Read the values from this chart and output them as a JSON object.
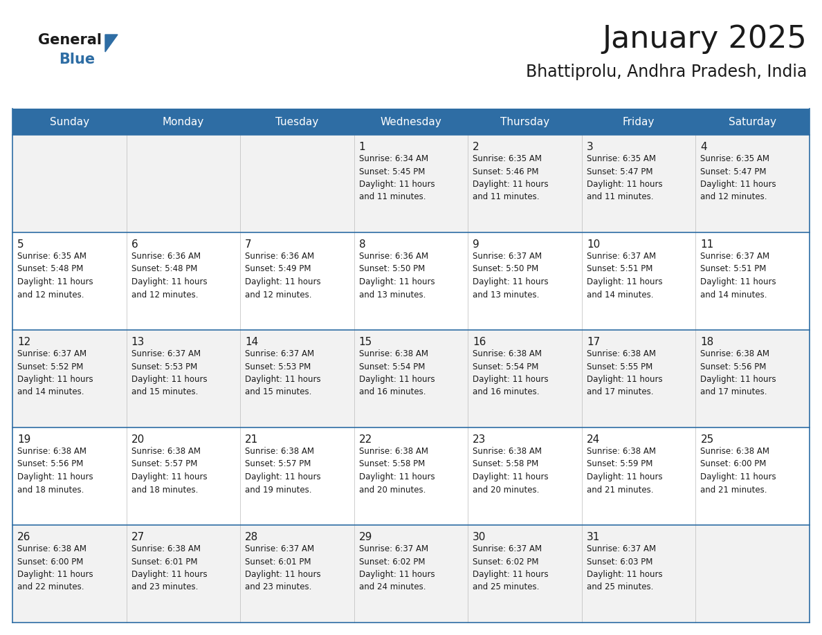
{
  "title": "January 2025",
  "subtitle": "Bhattiprolu, Andhra Pradesh, India",
  "header_bg": "#2E6DA4",
  "header_text": "#FFFFFF",
  "cell_bg_odd": "#F2F2F2",
  "cell_bg_even": "#FFFFFF",
  "text_color": "#1a1a1a",
  "border_color": "#2E6DA4",
  "light_border": "#BBBBBB",
  "day_headers": [
    "Sunday",
    "Monday",
    "Tuesday",
    "Wednesday",
    "Thursday",
    "Friday",
    "Saturday"
  ],
  "weeks": [
    [
      {
        "day": "",
        "info": ""
      },
      {
        "day": "",
        "info": ""
      },
      {
        "day": "",
        "info": ""
      },
      {
        "day": "1",
        "info": "Sunrise: 6:34 AM\nSunset: 5:45 PM\nDaylight: 11 hours\nand 11 minutes."
      },
      {
        "day": "2",
        "info": "Sunrise: 6:35 AM\nSunset: 5:46 PM\nDaylight: 11 hours\nand 11 minutes."
      },
      {
        "day": "3",
        "info": "Sunrise: 6:35 AM\nSunset: 5:47 PM\nDaylight: 11 hours\nand 11 minutes."
      },
      {
        "day": "4",
        "info": "Sunrise: 6:35 AM\nSunset: 5:47 PM\nDaylight: 11 hours\nand 12 minutes."
      }
    ],
    [
      {
        "day": "5",
        "info": "Sunrise: 6:35 AM\nSunset: 5:48 PM\nDaylight: 11 hours\nand 12 minutes."
      },
      {
        "day": "6",
        "info": "Sunrise: 6:36 AM\nSunset: 5:48 PM\nDaylight: 11 hours\nand 12 minutes."
      },
      {
        "day": "7",
        "info": "Sunrise: 6:36 AM\nSunset: 5:49 PM\nDaylight: 11 hours\nand 12 minutes."
      },
      {
        "day": "8",
        "info": "Sunrise: 6:36 AM\nSunset: 5:50 PM\nDaylight: 11 hours\nand 13 minutes."
      },
      {
        "day": "9",
        "info": "Sunrise: 6:37 AM\nSunset: 5:50 PM\nDaylight: 11 hours\nand 13 minutes."
      },
      {
        "day": "10",
        "info": "Sunrise: 6:37 AM\nSunset: 5:51 PM\nDaylight: 11 hours\nand 14 minutes."
      },
      {
        "day": "11",
        "info": "Sunrise: 6:37 AM\nSunset: 5:51 PM\nDaylight: 11 hours\nand 14 minutes."
      }
    ],
    [
      {
        "day": "12",
        "info": "Sunrise: 6:37 AM\nSunset: 5:52 PM\nDaylight: 11 hours\nand 14 minutes."
      },
      {
        "day": "13",
        "info": "Sunrise: 6:37 AM\nSunset: 5:53 PM\nDaylight: 11 hours\nand 15 minutes."
      },
      {
        "day": "14",
        "info": "Sunrise: 6:37 AM\nSunset: 5:53 PM\nDaylight: 11 hours\nand 15 minutes."
      },
      {
        "day": "15",
        "info": "Sunrise: 6:38 AM\nSunset: 5:54 PM\nDaylight: 11 hours\nand 16 minutes."
      },
      {
        "day": "16",
        "info": "Sunrise: 6:38 AM\nSunset: 5:54 PM\nDaylight: 11 hours\nand 16 minutes."
      },
      {
        "day": "17",
        "info": "Sunrise: 6:38 AM\nSunset: 5:55 PM\nDaylight: 11 hours\nand 17 minutes."
      },
      {
        "day": "18",
        "info": "Sunrise: 6:38 AM\nSunset: 5:56 PM\nDaylight: 11 hours\nand 17 minutes."
      }
    ],
    [
      {
        "day": "19",
        "info": "Sunrise: 6:38 AM\nSunset: 5:56 PM\nDaylight: 11 hours\nand 18 minutes."
      },
      {
        "day": "20",
        "info": "Sunrise: 6:38 AM\nSunset: 5:57 PM\nDaylight: 11 hours\nand 18 minutes."
      },
      {
        "day": "21",
        "info": "Sunrise: 6:38 AM\nSunset: 5:57 PM\nDaylight: 11 hours\nand 19 minutes."
      },
      {
        "day": "22",
        "info": "Sunrise: 6:38 AM\nSunset: 5:58 PM\nDaylight: 11 hours\nand 20 minutes."
      },
      {
        "day": "23",
        "info": "Sunrise: 6:38 AM\nSunset: 5:58 PM\nDaylight: 11 hours\nand 20 minutes."
      },
      {
        "day": "24",
        "info": "Sunrise: 6:38 AM\nSunset: 5:59 PM\nDaylight: 11 hours\nand 21 minutes."
      },
      {
        "day": "25",
        "info": "Sunrise: 6:38 AM\nSunset: 6:00 PM\nDaylight: 11 hours\nand 21 minutes."
      }
    ],
    [
      {
        "day": "26",
        "info": "Sunrise: 6:38 AM\nSunset: 6:00 PM\nDaylight: 11 hours\nand 22 minutes."
      },
      {
        "day": "27",
        "info": "Sunrise: 6:38 AM\nSunset: 6:01 PM\nDaylight: 11 hours\nand 23 minutes."
      },
      {
        "day": "28",
        "info": "Sunrise: 6:37 AM\nSunset: 6:01 PM\nDaylight: 11 hours\nand 23 minutes."
      },
      {
        "day": "29",
        "info": "Sunrise: 6:37 AM\nSunset: 6:02 PM\nDaylight: 11 hours\nand 24 minutes."
      },
      {
        "day": "30",
        "info": "Sunrise: 6:37 AM\nSunset: 6:02 PM\nDaylight: 11 hours\nand 25 minutes."
      },
      {
        "day": "31",
        "info": "Sunrise: 6:37 AM\nSunset: 6:03 PM\nDaylight: 11 hours\nand 25 minutes."
      },
      {
        "day": "",
        "info": ""
      }
    ]
  ],
  "logo_text_general": "General",
  "logo_text_blue": "Blue",
  "logo_color_general": "#1a1a1a",
  "logo_color_blue": "#2E6DA4",
  "title_fontsize": 32,
  "subtitle_fontsize": 17,
  "header_fontsize": 11,
  "day_num_fontsize": 11,
  "info_fontsize": 8.5
}
